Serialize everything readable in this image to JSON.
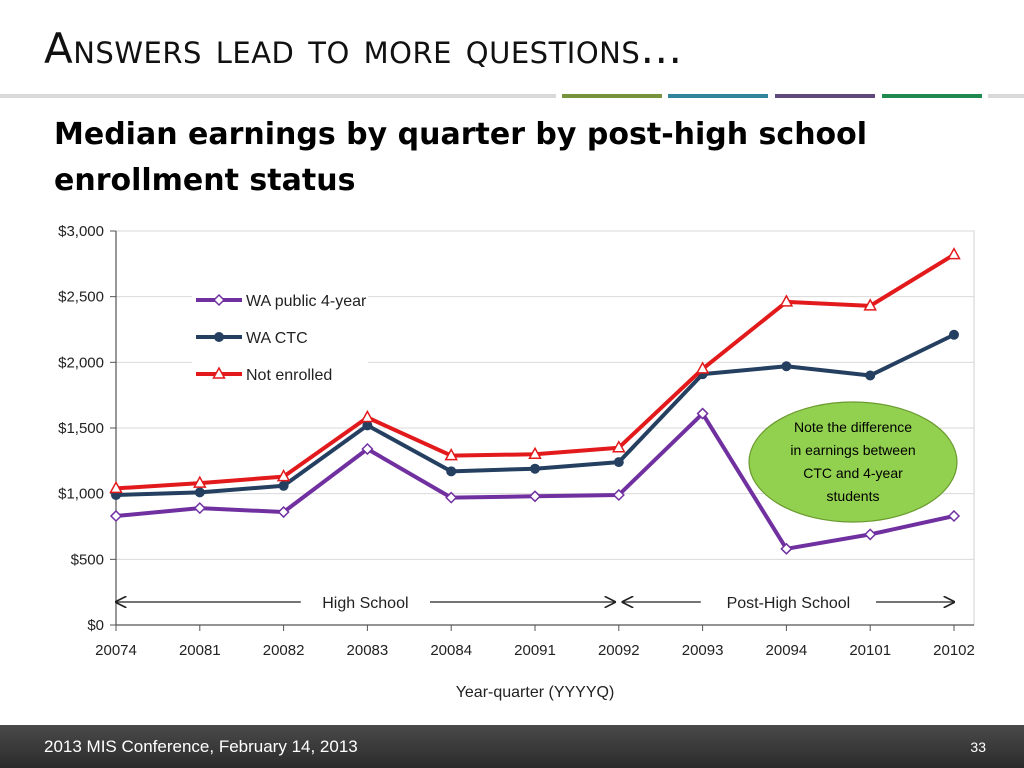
{
  "slide": {
    "title": "Answers lead to more questions…",
    "subtitle": "Median earnings by quarter by post-high school enrollment status",
    "accent_colors": [
      "#d9d9d9",
      "#77933c",
      "#31849b",
      "#5f497a",
      "#1f8a50",
      "#d9d9d9"
    ]
  },
  "footer": {
    "text": "2013 MIS Conference, February 14, 2013",
    "page_number": "33"
  },
  "chart_data": {
    "type": "line",
    "categories": [
      "20074",
      "20081",
      "20082",
      "20083",
      "20084",
      "20091",
      "20092",
      "20093",
      "20094",
      "20101",
      "20102"
    ],
    "xlabel": "Year-quarter (YYYYQ)",
    "ylabel": "",
    "ylim": [
      0,
      3000
    ],
    "yticks": [
      0,
      500,
      1000,
      1500,
      2000,
      2500,
      3000
    ],
    "ytick_labels": [
      "$0",
      "$500",
      "$1,000",
      "$1,500",
      "$2,000",
      "$2,500",
      "$3,000"
    ],
    "grid": true,
    "legend_position": "top-left",
    "series": [
      {
        "name": "WA public 4-year",
        "color": "#7030a0",
        "marker": "diamond",
        "values": [
          830,
          890,
          860,
          1340,
          970,
          980,
          990,
          1610,
          580,
          690,
          830
        ]
      },
      {
        "name": "WA CTC",
        "color": "#243f60",
        "marker": "circle",
        "values": [
          990,
          1010,
          1060,
          1520,
          1170,
          1190,
          1240,
          1910,
          1970,
          1900,
          2210
        ]
      },
      {
        "name": "Not enrolled",
        "color": "#e31a1c",
        "marker": "triangle",
        "values": [
          1040,
          1080,
          1130,
          1580,
          1290,
          1300,
          1350,
          1950,
          2460,
          2430,
          2820
        ]
      }
    ],
    "phases": [
      {
        "label": "High School",
        "from": "20074",
        "to": "20092"
      },
      {
        "label": "Post-High School",
        "from": "20092",
        "to": "20102"
      }
    ],
    "annotation": {
      "lines": [
        "Note the difference",
        "in earnings between",
        "CTC and 4-year",
        "students"
      ],
      "fill": "#92d050"
    }
  }
}
